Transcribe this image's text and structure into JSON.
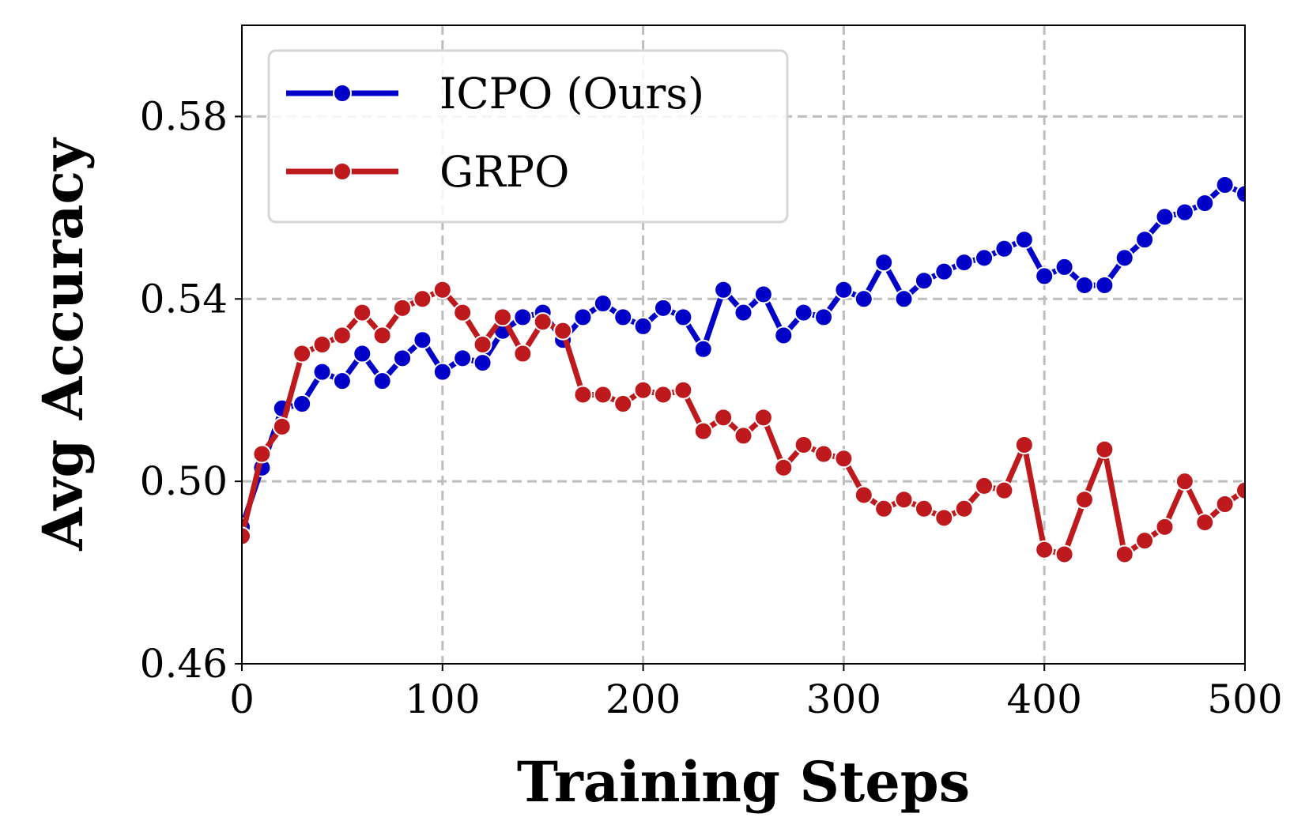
{
  "chart_data": {
    "type": "line",
    "xlabel": "Training Steps",
    "ylabel": "Avg Accuracy",
    "xlim": [
      0,
      500
    ],
    "ylim": [
      0.46,
      0.6
    ],
    "x_ticks": [
      0,
      100,
      200,
      300,
      400,
      500
    ],
    "y_ticks": [
      0.46,
      0.5,
      0.54,
      0.58
    ],
    "x_tick_labels": [
      "0",
      "100",
      "200",
      "300",
      "400",
      "500"
    ],
    "y_tick_labels": [
      "0.46",
      "0.50",
      "0.54",
      "0.58"
    ],
    "grid": true,
    "legend_position": "upper-left",
    "x": [
      0,
      10,
      20,
      30,
      40,
      50,
      60,
      70,
      80,
      90,
      100,
      110,
      120,
      130,
      140,
      150,
      160,
      170,
      180,
      190,
      200,
      210,
      220,
      230,
      240,
      250,
      260,
      270,
      280,
      290,
      300,
      310,
      320,
      330,
      340,
      350,
      360,
      370,
      380,
      390,
      400,
      410,
      420,
      430,
      440,
      450,
      460,
      470,
      480,
      490,
      500
    ],
    "series": [
      {
        "name": "ICPO (Ours)",
        "color": "#0000c8",
        "values": [
          0.49,
          0.503,
          0.516,
          0.517,
          0.524,
          0.522,
          0.528,
          0.522,
          0.527,
          0.531,
          0.524,
          0.527,
          0.526,
          0.533,
          0.536,
          0.537,
          0.531,
          0.536,
          0.539,
          0.536,
          0.534,
          0.538,
          0.536,
          0.529,
          0.542,
          0.537,
          0.541,
          0.532,
          0.537,
          0.536,
          0.542,
          0.54,
          0.548,
          0.54,
          0.544,
          0.546,
          0.548,
          0.549,
          0.551,
          0.553,
          0.545,
          0.547,
          0.543,
          0.543,
          0.549,
          0.553,
          0.558,
          0.559,
          0.561,
          0.565,
          0.563
        ]
      },
      {
        "name": "GRPO",
        "color": "#be1a1d",
        "values": [
          0.488,
          0.506,
          0.512,
          0.528,
          0.53,
          0.532,
          0.537,
          0.532,
          0.538,
          0.54,
          0.542,
          0.537,
          0.53,
          0.536,
          0.528,
          0.535,
          0.533,
          0.519,
          0.519,
          0.517,
          0.52,
          0.519,
          0.52,
          0.511,
          0.514,
          0.51,
          0.514,
          0.503,
          0.508,
          0.506,
          0.505,
          0.497,
          0.494,
          0.496,
          0.494,
          0.492,
          0.494,
          0.499,
          0.498,
          0.508,
          0.485,
          0.484,
          0.496,
          0.507,
          0.484,
          0.487,
          0.49,
          0.5,
          0.491,
          0.495,
          0.498
        ]
      }
    ]
  }
}
